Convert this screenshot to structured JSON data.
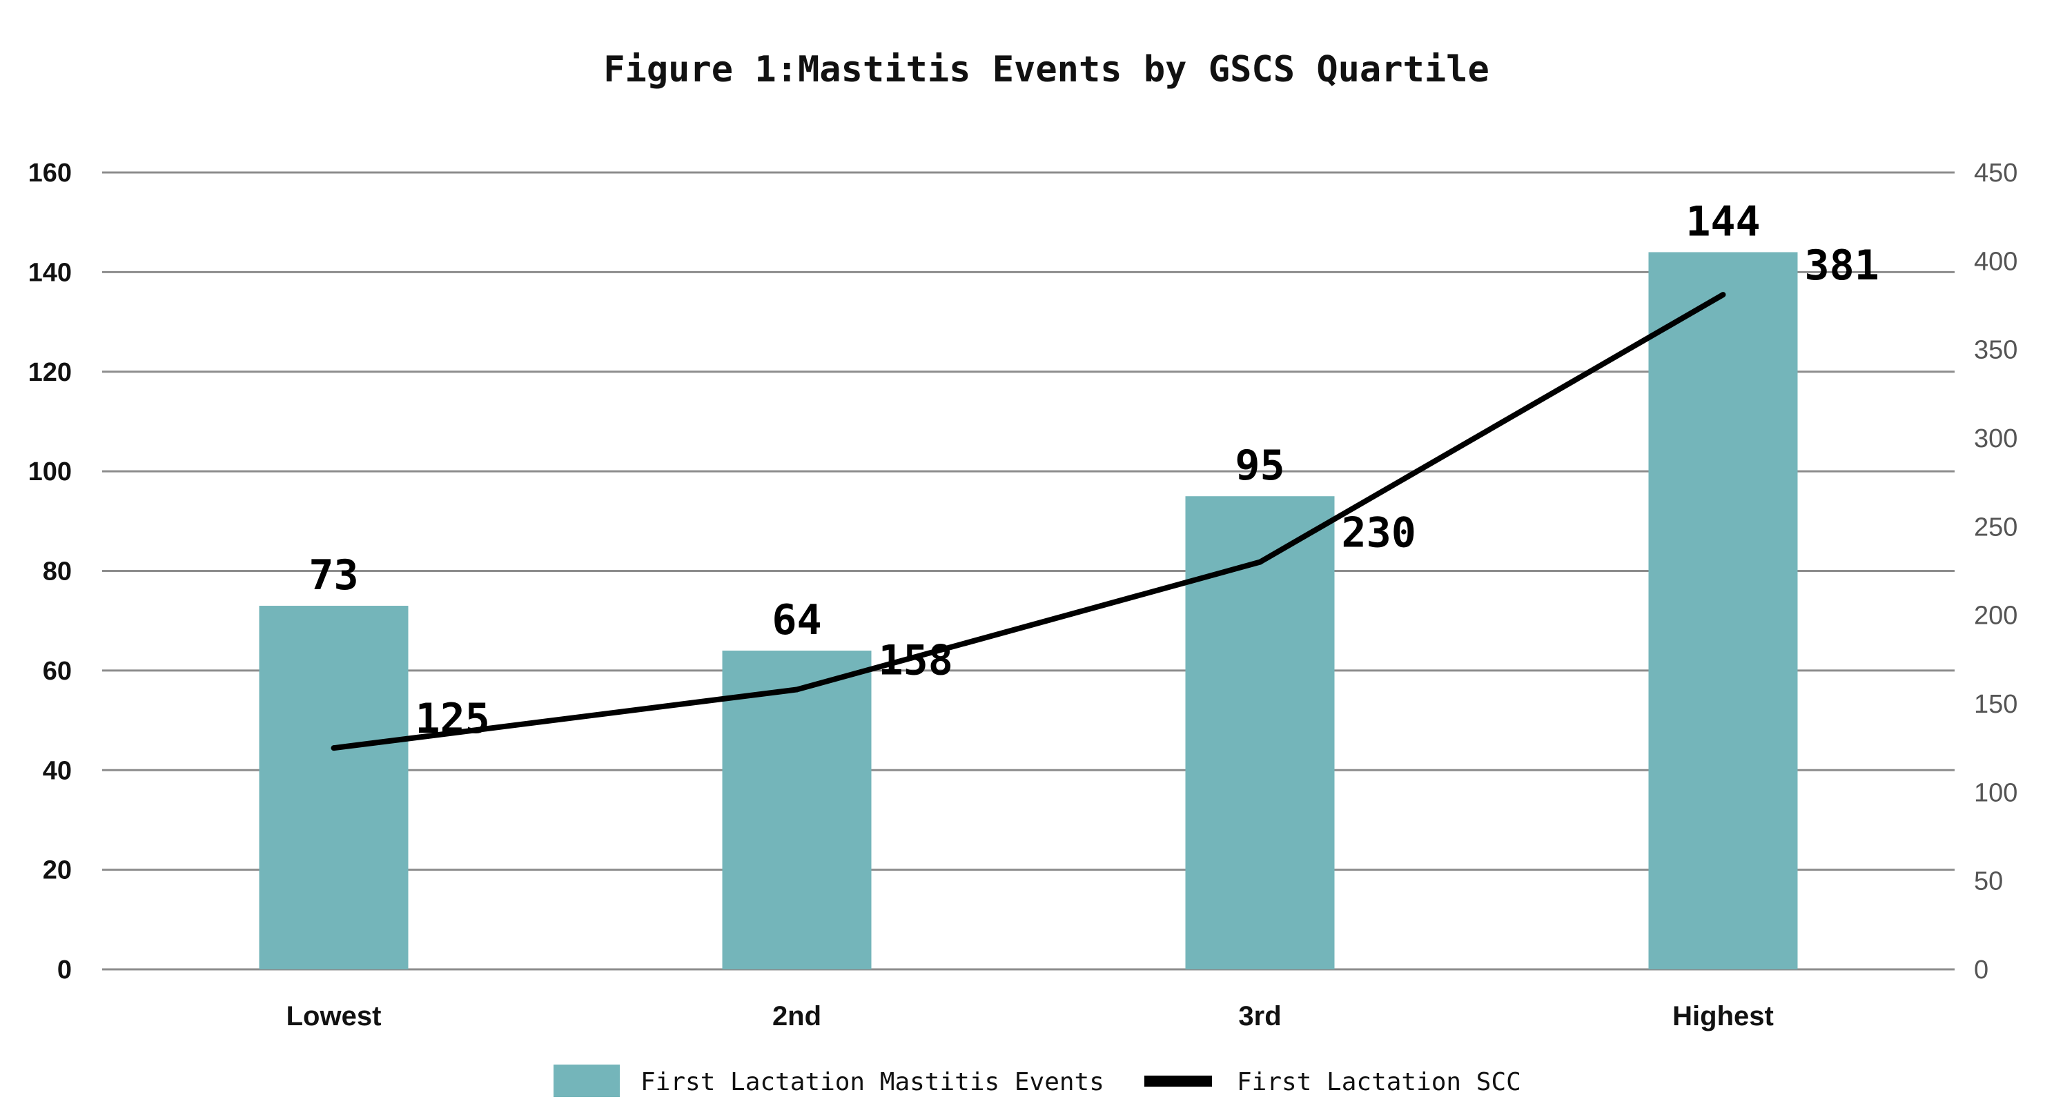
{
  "chart_data": {
    "type": "bar",
    "title": "Figure 1:Mastitis Events by GSCS Quartile",
    "categories": [
      "Lowest",
      "2nd",
      "3rd",
      "Highest"
    ],
    "series": [
      {
        "name": "First Lactation Mastitis Events",
        "type": "bar",
        "axis": "left",
        "color": "#74B5BA",
        "values": [
          73,
          64,
          95,
          144
        ],
        "labels": [
          "73",
          "64",
          "95",
          "144"
        ]
      },
      {
        "name": "First Lactation SCC",
        "type": "line",
        "axis": "right",
        "color": "#000000",
        "values": [
          125,
          158,
          230,
          381
        ],
        "labels": [
          "125",
          "158",
          "230",
          "381"
        ]
      }
    ],
    "y_left": {
      "min": 0,
      "max": 160,
      "ticks": [
        "0",
        "20",
        "40",
        "60",
        "80",
        "100",
        "120",
        "140",
        "160"
      ]
    },
    "y_right": {
      "min": 0,
      "max": 450,
      "ticks": [
        "0",
        "50",
        "100",
        "150",
        "200",
        "250",
        "300",
        "350",
        "400",
        "450"
      ]
    },
    "grid": true,
    "gridColor": "#8c8c8c",
    "legend_position": "bottom"
  }
}
